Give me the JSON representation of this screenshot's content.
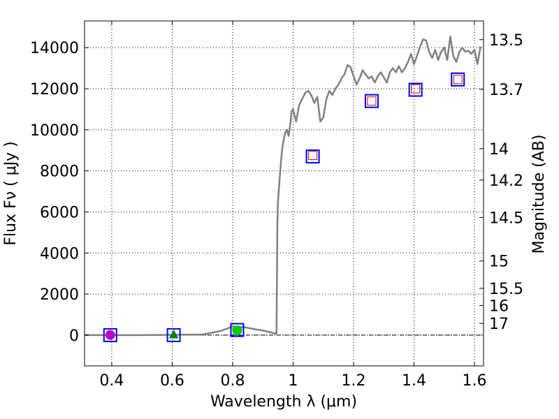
{
  "chart_data": {
    "type": "scatter",
    "xlabel": "Wavelength  λ (μm)",
    "ylabel": "Flux  Fν  ( μJy )",
    "y2label": "Magnitude (AB)",
    "xlim": [
      0.31,
      1.63
    ],
    "ylim": [
      -1500,
      15300
    ],
    "xticks": [
      0.4,
      0.6,
      0.8,
      1.0,
      1.2,
      1.4,
      1.6
    ],
    "xtick_labels": [
      "0.4",
      "0.6",
      "0.8",
      "1",
      "1.2",
      "1.4",
      "1.6"
    ],
    "yticks": [
      0,
      2000,
      4000,
      6000,
      8000,
      10000,
      12000,
      14000
    ],
    "ytick_labels": [
      "0",
      "2000",
      "4000",
      "6000",
      "8000",
      "10000",
      "12000",
      "14000"
    ],
    "y2ticks": [
      {
        "label": "13.5",
        "flux": 14390
      },
      {
        "label": "13.7",
        "flux": 11970
      },
      {
        "label": "14",
        "flux": 9080
      },
      {
        "label": "14.2",
        "flux": 7550
      },
      {
        "label": "14.5",
        "flux": 5730
      },
      {
        "label": "15",
        "flux": 3610
      },
      {
        "label": "15.5",
        "flux": 2280
      },
      {
        "label": "16",
        "flux": 1440
      },
      {
        "label": "17",
        "flux": 570
      }
    ],
    "grid": true,
    "model_spectrum": {
      "color": "#808080",
      "x": [
        0.31,
        0.5,
        0.7,
        0.76,
        0.8,
        0.84,
        0.87,
        0.9,
        0.93,
        0.945,
        0.948,
        0.95,
        0.955,
        0.96,
        0.965,
        0.97,
        0.975,
        0.98,
        0.985,
        0.99,
        0.995,
        1.0,
        1.005,
        1.01,
        1.02,
        1.03,
        1.04,
        1.05,
        1.06,
        1.07,
        1.08,
        1.09,
        1.1,
        1.11,
        1.12,
        1.13,
        1.14,
        1.15,
        1.16,
        1.17,
        1.18,
        1.19,
        1.2,
        1.21,
        1.22,
        1.23,
        1.24,
        1.25,
        1.26,
        1.27,
        1.28,
        1.29,
        1.3,
        1.31,
        1.32,
        1.33,
        1.34,
        1.35,
        1.36,
        1.37,
        1.38,
        1.39,
        1.4,
        1.41,
        1.42,
        1.43,
        1.44,
        1.45,
        1.46,
        1.47,
        1.48,
        1.49,
        1.5,
        1.51,
        1.52,
        1.53,
        1.54,
        1.55,
        1.56,
        1.57,
        1.58,
        1.59,
        1.6,
        1.61,
        1.62
      ],
      "y": [
        0,
        0,
        30,
        200,
        420,
        380,
        300,
        220,
        120,
        60,
        5500,
        6500,
        7500,
        8500,
        9200,
        9600,
        9900,
        10000,
        9700,
        10200,
        10900,
        11000,
        10700,
        10400,
        11200,
        11500,
        11800,
        11900,
        11700,
        11300,
        11600,
        10400,
        10600,
        11500,
        11900,
        11700,
        12000,
        12200,
        12500,
        12700,
        13150,
        13050,
        12600,
        12200,
        12500,
        12900,
        12700,
        12500,
        12600,
        12300,
        12600,
        12800,
        12550,
        12300,
        12800,
        13000,
        12800,
        13100,
        12800,
        13000,
        13300,
        13700,
        13200,
        13600,
        14050,
        14400,
        14350,
        13800,
        13500,
        13900,
        13400,
        13800,
        14000,
        13400,
        14550,
        13600,
        13300,
        13800,
        14000,
        13800,
        13850,
        13700,
        13900,
        13200,
        14050
      ]
    },
    "observed_points": [
      {
        "x": 0.395,
        "y": 10,
        "marker": "circle",
        "color": "#bf00bf",
        "sigma": 80
      },
      {
        "x": 0.605,
        "y": 30,
        "marker": "triangle",
        "color": "#008000",
        "sigma": 60
      },
      {
        "x": 0.815,
        "y": 230,
        "marker": "circle",
        "color": "#00cc00",
        "sigma": 130
      }
    ],
    "model_boxes": [
      {
        "x": 0.395,
        "y": 0
      },
      {
        "x": 0.605,
        "y": 0
      },
      {
        "x": 0.815,
        "y": 250
      },
      {
        "x": 1.065,
        "y": 8700
      },
      {
        "x": 1.26,
        "y": 11400
      },
      {
        "x": 1.405,
        "y": 11950
      },
      {
        "x": 1.545,
        "y": 12450
      }
    ],
    "upper_limits": [
      {
        "x": 1.065,
        "y": 8750
      },
      {
        "x": 1.26,
        "y": 11400
      },
      {
        "x": 1.405,
        "y": 12000
      },
      {
        "x": 1.545,
        "y": 12450
      }
    ],
    "colors": {
      "box": "#0000ff",
      "upper_limit": "#cc0000",
      "grid": "#000000",
      "zero_line": "#000000"
    }
  }
}
